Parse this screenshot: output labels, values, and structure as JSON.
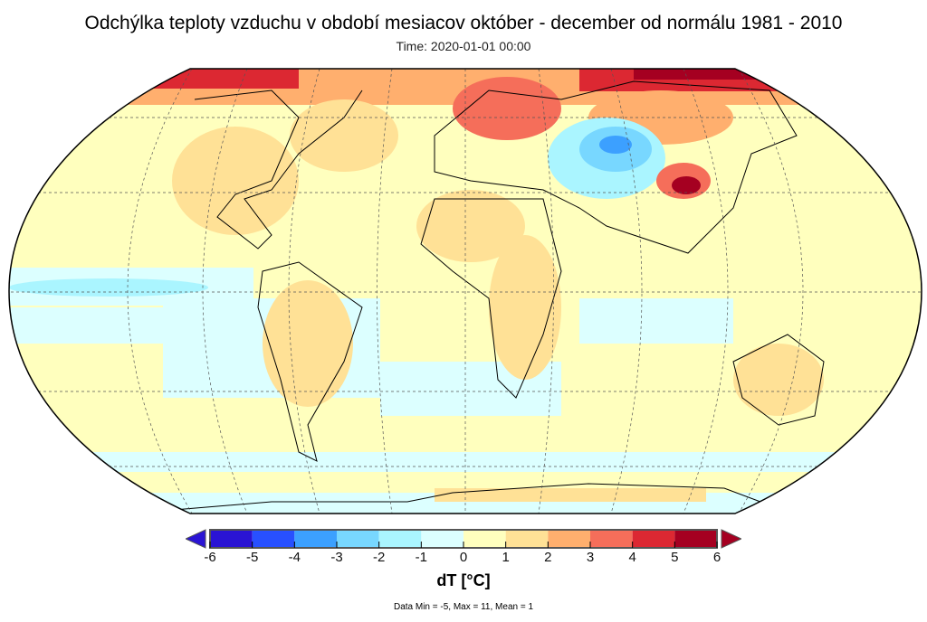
{
  "title": "Odchýlka teploty vzduchu v období mesiacov október - december od normálu 1981 - 2010",
  "subtitle": "Time: 2020-01-01 00:00",
  "colorbar": {
    "label": "dT [°C]",
    "ticks": [
      "-6",
      "-5",
      "-4",
      "-3",
      "-2",
      "-1",
      "0",
      "1",
      "2",
      "3",
      "4",
      "5",
      "6"
    ],
    "colors": [
      "#2a14d4",
      "#2850ff",
      "#3ca0ff",
      "#78d7ff",
      "#aaf5ff",
      "#dcffff",
      "#ffffbe",
      "#ffe196",
      "#ffaf6e",
      "#f56e5a",
      "#dc2832",
      "#a50021"
    ],
    "under_color": "#2a14d4",
    "over_color": "#a50021"
  },
  "stats": "Data Min = -5, Max = 11, Mean = 1"
}
